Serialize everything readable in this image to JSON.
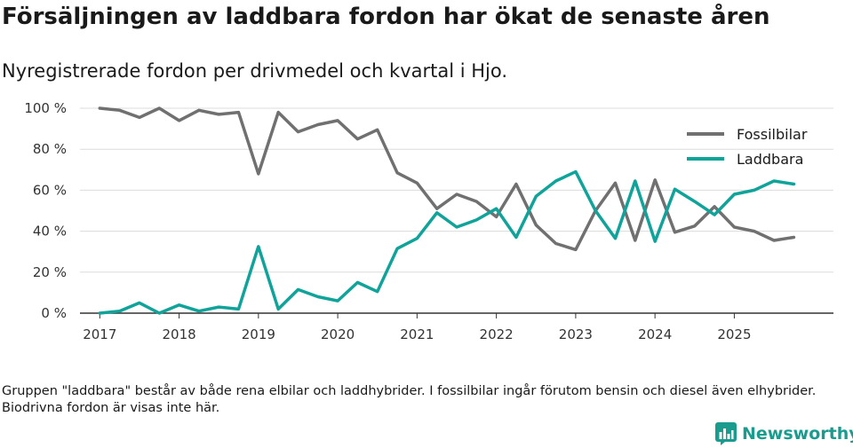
{
  "header": {
    "title": "Försäljningen av laddbara fordon har ökat de senaste åren",
    "subtitle": "Nyregistrerade fordon per drivmedel och kvartal i Hjo."
  },
  "footnote": "Gruppen \"laddbara\" består av både rena elbilar och laddhybrider. I fossilbilar ingår förutom bensin och diesel även elhybrider. Biodrivna fordon är visas inte här.",
  "brand": {
    "name": "Newsworthy",
    "color": "#199c8e"
  },
  "chart_data": {
    "type": "line",
    "title": "Försäljningen av laddbara fordon har ökat de senaste åren",
    "subtitle": "Nyregistrerade fordon per drivmedel och kvartal i Hjo.",
    "xlabel": "",
    "ylabel": "",
    "ylim": [
      0,
      100
    ],
    "xlim": [
      2016.75,
      2026.25
    ],
    "grid": true,
    "legend": "top-right",
    "y_ticks": [
      0,
      20,
      40,
      60,
      80,
      100
    ],
    "y_tick_labels": [
      "0 %",
      "20 %",
      "40 %",
      "60 %",
      "80 %",
      "100 %"
    ],
    "x_ticks": [
      2017,
      2018,
      2019,
      2020,
      2021,
      2022,
      2023,
      2024,
      2025
    ],
    "x_tick_labels": [
      "2017",
      "2018",
      "2019",
      "2020",
      "2021",
      "2022",
      "2023",
      "2024",
      "2025"
    ],
    "x": [
      2017.0,
      2017.25,
      2017.5,
      2017.75,
      2018.0,
      2018.25,
      2018.5,
      2018.75,
      2019.0,
      2019.25,
      2019.5,
      2019.75,
      2020.0,
      2020.25,
      2020.5,
      2020.75,
      2021.0,
      2021.25,
      2021.5,
      2021.75,
      2022.0,
      2022.25,
      2022.5,
      2022.75,
      2023.0,
      2023.25,
      2023.5,
      2023.75,
      2024.0,
      2024.25,
      2024.5,
      2024.75,
      2025.0,
      2025.25,
      2025.5,
      2025.75
    ],
    "series": [
      {
        "name": "Fossilbilar",
        "color": "#707070",
        "values": [
          100,
          99,
          95.5,
          100,
          94,
          99,
          97,
          98,
          68,
          98,
          88.5,
          92,
          94,
          85,
          89.5,
          68.5,
          63.5,
          51,
          58,
          54.5,
          47,
          63,
          43,
          34,
          31,
          50,
          63.5,
          35.5,
          65,
          39.5,
          42.5,
          52,
          42,
          40,
          35.5,
          37
        ]
      },
      {
        "name": "Laddbara",
        "color": "#0fa39a",
        "values": [
          0,
          1,
          5,
          0,
          4,
          1,
          3,
          2,
          32.5,
          2,
          11.5,
          8,
          6,
          15,
          10.5,
          31.5,
          36.5,
          49,
          42,
          45.5,
          51,
          37,
          57,
          64.5,
          69,
          50,
          36.5,
          64.5,
          35,
          60.5,
          54.5,
          48,
          58,
          60,
          64.5,
          63
        ]
      }
    ]
  }
}
